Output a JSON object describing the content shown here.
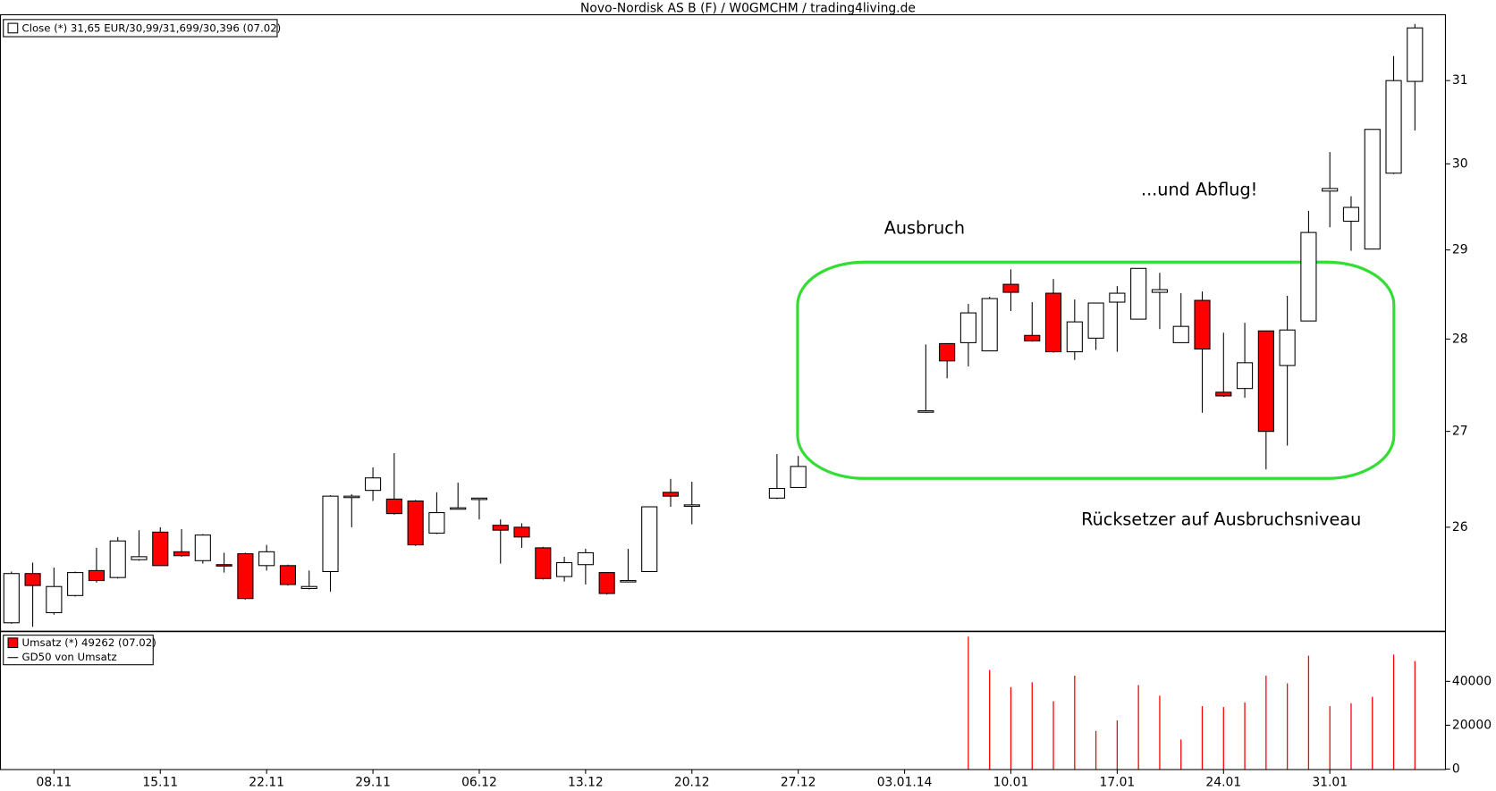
{
  "title": "Novo-Nordisk AS B (F) / W0GMCHM / trading4living.de",
  "chart_data": [
    {
      "type": "candlestick",
      "legend": "Close (*) 31,65 EUR/30,99/31,699/30,396 (07.02)",
      "annotations": [
        "Ausbruch",
        "...und Abflug!",
        "Rücksetzer auf Ausbruchsniveau"
      ],
      "log_scale": true,
      "up_color": "#ffffff",
      "down_color": "#ff0000",
      "ylim": [
        24.96,
        31.82
      ],
      "yticks": [
        26,
        27,
        28,
        29,
        30,
        31
      ],
      "open": [
        25.04,
        25.53,
        25.14,
        25.31,
        25.56,
        25.49,
        25.67,
        25.95,
        25.75,
        25.66,
        25.62,
        25.73,
        25.61,
        25.61,
        25.38,
        25.55,
        26.31,
        26.38,
        26.29,
        26.27,
        25.94,
        26.19,
        26.29,
        26.02,
        26.0,
        25.79,
        25.5,
        25.62,
        25.54,
        25.45,
        25.55,
        26.36,
        26.22,
        null,
        null,
        null,
        26.3,
        26.41,
        null,
        null,
        null,
        null,
        null,
        27.21,
        27.95,
        27.96,
        27.87,
        28.61,
        28.04,
        28.51,
        27.86,
        28.01,
        28.41,
        28.22,
        28.52,
        27.96,
        28.43,
        27.42,
        27.46,
        28.09,
        27.71,
        28.2,
        29.68,
        29.33,
        29.01,
        29.89,
        30.99
      ],
      "high": [
        25.55,
        25.64,
        25.59,
        25.55,
        25.79,
        25.9,
        25.97,
        26.0,
        25.98,
        25.93,
        25.74,
        25.74,
        25.82,
        25.62,
        25.56,
        26.33,
        26.34,
        26.62,
        26.77,
        26.28,
        26.36,
        26.46,
        26.3,
        26.08,
        26.04,
        25.8,
        25.7,
        25.78,
        25.54,
        25.78,
        26.21,
        26.5,
        26.47,
        null,
        null,
        null,
        26.76,
        26.74,
        null,
        null,
        null,
        null,
        null,
        27.94,
        27.95,
        28.39,
        28.47,
        28.78,
        28.41,
        28.67,
        28.44,
        28.4,
        28.59,
        28.79,
        28.74,
        28.51,
        28.53,
        28.07,
        28.18,
        28.09,
        28.48,
        29.45,
        30.14,
        29.62,
        30.41,
        31.3,
        31.699
      ],
      "low": [
        25.03,
        25.0,
        25.12,
        25.3,
        25.44,
        25.48,
        25.66,
        25.61,
        25.7,
        25.63,
        25.54,
        25.27,
        25.56,
        25.41,
        25.37,
        25.35,
        26.0,
        26.27,
        26.13,
        25.81,
        25.93,
        26.19,
        26.08,
        25.63,
        25.79,
        25.47,
        25.45,
        25.42,
        25.32,
        25.45,
        25.55,
        26.21,
        26.03,
        null,
        null,
        null,
        26.29,
        26.41,
        null,
        null,
        null,
        null,
        null,
        27.2,
        27.57,
        27.7,
        27.87,
        28.31,
        27.97,
        27.85,
        27.77,
        27.88,
        27.86,
        28.22,
        28.11,
        27.96,
        27.2,
        27.37,
        27.36,
        26.6,
        26.85,
        28.2,
        29.26,
        28.99,
        29.01,
        29.88,
        30.396
      ],
      "close": [
        25.53,
        25.41,
        25.4,
        25.54,
        25.46,
        25.86,
        25.7,
        25.61,
        25.71,
        25.92,
        25.61,
        25.28,
        25.75,
        25.42,
        25.4,
        26.32,
        26.32,
        26.51,
        26.14,
        25.82,
        26.15,
        26.2,
        26.3,
        25.97,
        25.9,
        25.48,
        25.64,
        25.74,
        25.33,
        25.46,
        26.21,
        26.32,
        26.23,
        null,
        null,
        null,
        26.4,
        26.63,
        null,
        null,
        null,
        null,
        null,
        27.22,
        27.76,
        28.29,
        28.45,
        28.52,
        27.98,
        27.86,
        28.19,
        28.4,
        28.51,
        28.79,
        28.55,
        28.14,
        27.89,
        27.38,
        27.74,
        27.0,
        28.1,
        29.2,
        29.71,
        29.49,
        30.41,
        31.0,
        31.65
      ]
    },
    {
      "type": "bar",
      "legend": [
        "Umsatz (*) 49262 (07.02)",
        "GD50 von Umsatz"
      ],
      "color": "#ff0000",
      "categories": [
        null,
        null,
        "08.11",
        null,
        null,
        null,
        null,
        "15.11",
        null,
        null,
        null,
        null,
        "22.11",
        null,
        null,
        null,
        null,
        "29.11",
        null,
        null,
        null,
        null,
        "06.12",
        null,
        null,
        null,
        null,
        "13.12",
        null,
        null,
        null,
        null,
        "20.12",
        null,
        null,
        null,
        null,
        "27.12",
        null,
        null,
        null,
        null,
        "03.01.14",
        null,
        null,
        null,
        null,
        "10.01",
        null,
        null,
        null,
        null,
        "17.01",
        null,
        null,
        null,
        null,
        "24.01",
        null,
        null,
        null,
        null,
        "31.01",
        null,
        null,
        null,
        null
      ],
      "values": [
        null,
        null,
        null,
        null,
        null,
        null,
        null,
        null,
        null,
        null,
        null,
        null,
        null,
        null,
        null,
        null,
        null,
        null,
        null,
        null,
        null,
        null,
        null,
        null,
        null,
        null,
        null,
        null,
        null,
        null,
        null,
        null,
        null,
        null,
        null,
        null,
        null,
        null,
        null,
        null,
        null,
        null,
        null,
        null,
        null,
        60400,
        45200,
        37400,
        39600,
        30900,
        42600,
        17400,
        22200,
        38300,
        33500,
        13500,
        28700,
        28300,
        30400,
        42600,
        39100,
        51700,
        28700,
        30000,
        33000,
        52200,
        49262
      ],
      "ylim": [
        0,
        62600
      ],
      "yticks": [
        0,
        20000,
        40000
      ]
    }
  ]
}
